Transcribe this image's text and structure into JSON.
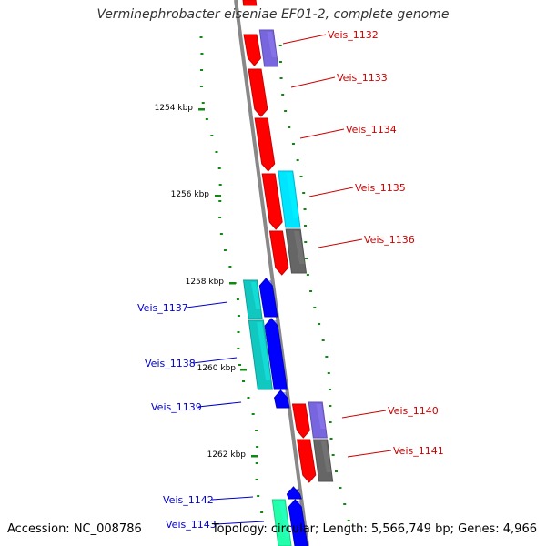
{
  "title": "Verminephrobacter eiseniae EF01-2, complete genome",
  "footer": {
    "accession": "Accession: NC_008786",
    "summary": "Topology: circular; Length: 5,566,749 bp; Genes: 4,966"
  },
  "colors": {
    "forward_gene": "#ff0000",
    "reverse_gene": "#0000ff",
    "forward_label": "#cc0000",
    "reverse_label": "#0000cc",
    "cyan_feature": "#00e5ff",
    "teal_feature": "#11c8c0",
    "green_feature": "#22ffaa",
    "purple_feature": "#7766dd",
    "gray_feature": "#666666",
    "gc_marks": "#118811",
    "backbone": "#888888"
  },
  "scale_labels": [
    "1254 kbp",
    "1256 kbp",
    "1258 kbp",
    "1260 kbp",
    "1262 kbp"
  ],
  "genes": [
    {
      "name": "Veis_1132",
      "strand": "forward"
    },
    {
      "name": "Veis_1133",
      "strand": "forward"
    },
    {
      "name": "Veis_1134",
      "strand": "forward"
    },
    {
      "name": "Veis_1135",
      "strand": "forward"
    },
    {
      "name": "Veis_1136",
      "strand": "forward"
    },
    {
      "name": "Veis_1137",
      "strand": "reverse"
    },
    {
      "name": "Veis_1138",
      "strand": "reverse"
    },
    {
      "name": "Veis_1139",
      "strand": "reverse"
    },
    {
      "name": "Veis_1140",
      "strand": "forward"
    },
    {
      "name": "Veis_1141",
      "strand": "forward"
    },
    {
      "name": "Veis_1142",
      "strand": "reverse"
    },
    {
      "name": "Veis_1143",
      "strand": "reverse"
    }
  ]
}
